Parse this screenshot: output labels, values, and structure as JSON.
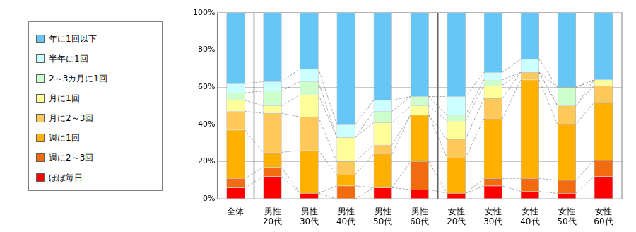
{
  "chart_data": {
    "type": "bar",
    "stacked": true,
    "grid": true,
    "legend": "left",
    "categories": [
      "全体",
      "男性\n20代",
      "男性\n30代",
      "男性\n40代",
      "男性\n50代",
      "男性\n60代",
      "女性\n20代",
      "女性\n30代",
      "女性\n40代",
      "女性\n50代",
      "女性\n60代"
    ],
    "series": [
      {
        "name": "ほぼ毎日",
        "color": "#ff0000",
        "values": [
          6,
          12,
          3,
          0,
          6,
          5,
          3,
          7,
          4,
          3,
          12
        ]
      },
      {
        "name": "週に2～3回",
        "color": "#f26b0f",
        "values": [
          5,
          5,
          0,
          7,
          0,
          15,
          0,
          4,
          7,
          7,
          9
        ]
      },
      {
        "name": "週に1回",
        "color": "#ffb000",
        "values": [
          26,
          8,
          23,
          6,
          18,
          25,
          19,
          32,
          53,
          30,
          31
        ]
      },
      {
        "name": "月に2～3回",
        "color": "#ffc85a",
        "values": [
          10,
          21,
          18,
          7,
          5,
          0,
          10,
          11,
          4,
          10,
          9
        ]
      },
      {
        "name": "月に1回",
        "color": "#ffff99",
        "values": [
          6,
          4,
          12,
          13,
          12,
          5,
          10,
          7,
          0,
          0,
          3
        ]
      },
      {
        "name": "2～3カ月に1回",
        "color": "#ccffcc",
        "values": [
          4,
          8,
          7,
          0,
          6,
          5,
          3,
          3,
          0,
          10,
          0
        ]
      },
      {
        "name": "半年に1回",
        "color": "#ccffff",
        "values": [
          5,
          5,
          7,
          7,
          6,
          0,
          10,
          4,
          7,
          0,
          0
        ]
      },
      {
        "name": "年に1回以下",
        "color": "#66c6f5",
        "values": [
          38,
          37,
          30,
          60,
          47,
          45,
          45,
          32,
          25,
          40,
          36
        ]
      }
    ],
    "ylim": [
      0,
      100
    ],
    "yticks": [
      {
        "value": 0,
        "label": "0%"
      },
      {
        "value": 20,
        "label": "20%"
      },
      {
        "value": 40,
        "label": "40%"
      },
      {
        "value": 60,
        "label": "60%"
      },
      {
        "value": 80,
        "label": "80%"
      },
      {
        "value": 100,
        "label": "100%"
      }
    ]
  }
}
